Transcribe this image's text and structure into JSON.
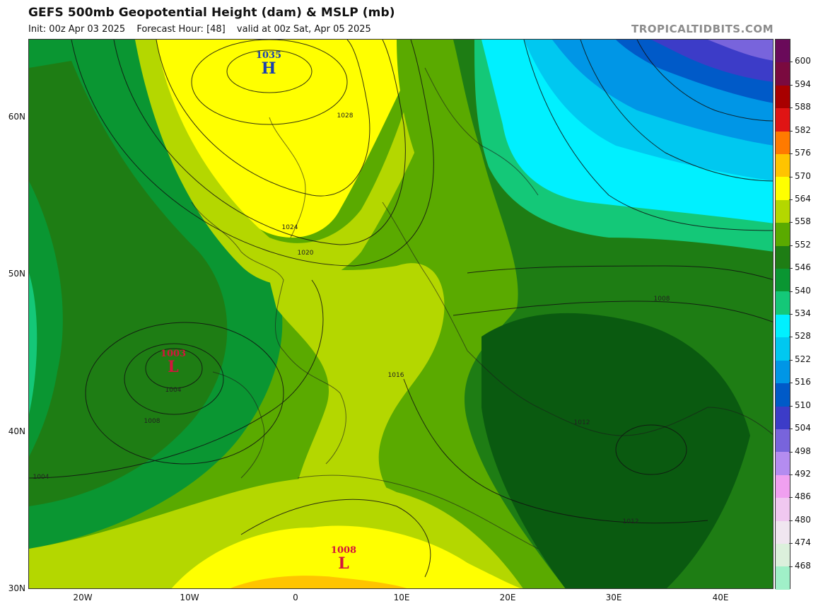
{
  "header": {
    "title": "GEFS 500mb Geopotential Height (dam) & MSLP (mb)",
    "init": "Init: 00z Apr 03 2025",
    "forecast_hour": "Forecast Hour: [48]",
    "valid": "valid at 00z Sat, Apr 05 2025",
    "brand": "TROPICALTIDBITS.COM"
  },
  "axes": {
    "lat_labels": [
      "60N",
      "50N",
      "40N",
      "30N"
    ],
    "lon_labels": [
      "20W",
      "10W",
      "0",
      "10E",
      "20E",
      "30E",
      "40E"
    ]
  },
  "colorbar": {
    "labels": [
      "600",
      "594",
      "588",
      "582",
      "576",
      "570",
      "564",
      "558",
      "552",
      "546",
      "540",
      "534",
      "528",
      "522",
      "516",
      "510",
      "504",
      "498",
      "492",
      "486",
      "480",
      "474",
      "468"
    ],
    "colors": [
      "#7a0a3f",
      "#a80000",
      "#e01414",
      "#ff7a00",
      "#ffc400",
      "#ffff00",
      "#b4d700",
      "#5aaa00",
      "#1e7d14",
      "#0a9632",
      "#14c878",
      "#00f0ff",
      "#00c8f0",
      "#0096e6",
      "#005ac8",
      "#3c3cc8",
      "#7864dc",
      "#b48cf0",
      "#f0a0f0",
      "#f0c8f0",
      "#f0e6f0",
      "#dcf0dc",
      "#a0f0c8"
    ]
  },
  "pressure_systems": [
    {
      "type": "H",
      "value": "1035",
      "color": "#1a3fb0"
    },
    {
      "type": "L",
      "value": "1003",
      "color": "#d4143c"
    },
    {
      "type": "L",
      "value": "1008",
      "color": "#d4143c"
    }
  ],
  "isobar_labels": [
    "1028",
    "1024",
    "1020",
    "1016",
    "1012",
    "1012",
    "1008",
    "1008",
    "1004",
    "1004"
  ]
}
